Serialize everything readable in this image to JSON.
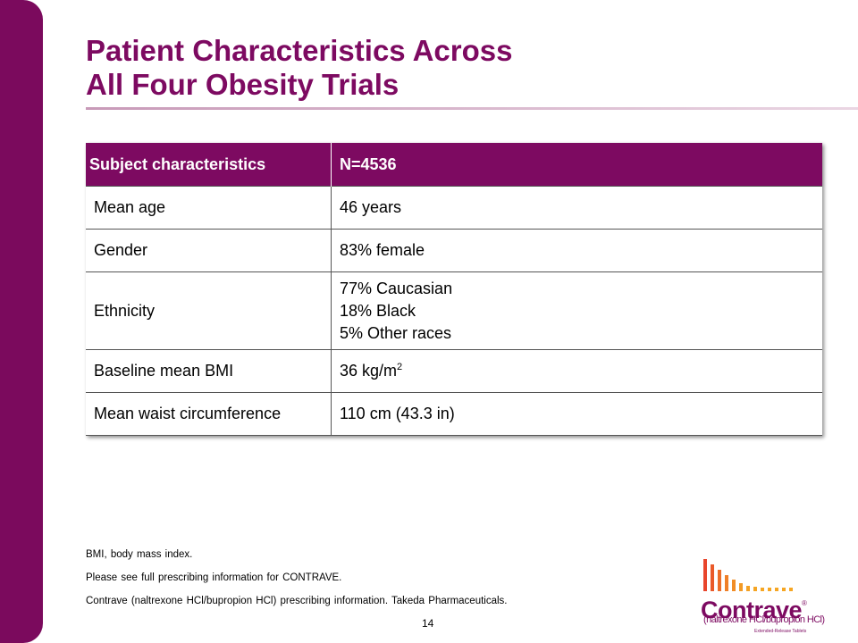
{
  "slide": {
    "title_line1": "Patient Characteristics Across",
    "title_line2": "All Four Obesity Trials",
    "accent_color": "#7d0a61",
    "page_number": "14"
  },
  "table": {
    "headers": [
      "Subject characteristics",
      "N=4536"
    ],
    "rows": [
      {
        "label": "Mean age",
        "value": "46 years"
      },
      {
        "label": "Gender",
        "value": "83% female"
      },
      {
        "label": "Ethnicity",
        "values": [
          "77% Caucasian",
          "18% Black",
          "5% Other races"
        ]
      },
      {
        "label": "Baseline mean BMI",
        "value": "36 kg/m",
        "sup": "2"
      },
      {
        "label": "Mean waist circumference",
        "value": "110 cm (43.3 in)"
      }
    ]
  },
  "footnotes": [
    "BMI, body mass index.",
    "Please see full prescribing information for CONTRAVE.",
    "Contrave (naltrexone HCl/bupropion HCl) prescribing information. Takeda Pharmaceuticals."
  ],
  "logo": {
    "word": "Contrave",
    "registered": "®",
    "subtitle": "(naltrexone HCl/bupropion HCl)",
    "small_text": "Extended-Release Tablets",
    "bar_color_start": "#e8452c",
    "bar_color_end": "#f6a623"
  }
}
